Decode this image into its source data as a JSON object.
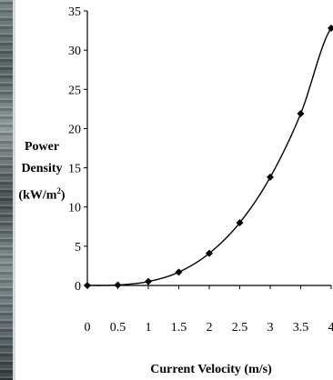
{
  "chart_data": {
    "type": "line",
    "title": "",
    "xlabel": "Current Velocity (m/s)",
    "ylabel": "Power Density (kW/m²)",
    "ylabel_parts": {
      "line1": "Power",
      "line2": "Density",
      "line3_pre": "(kW/m",
      "line3_sup": "2",
      "line3_post": ")"
    },
    "xlim": [
      0,
      4
    ],
    "ylim": [
      0,
      35
    ],
    "x_ticks": [
      "0",
      "0.5",
      "1",
      "1.5",
      "2",
      "2.5",
      "3",
      "3.5",
      "4"
    ],
    "y_ticks": [
      "0",
      "5",
      "10",
      "15",
      "20",
      "25",
      "30",
      "35"
    ],
    "x": [
      0,
      0.5,
      1,
      1.5,
      2,
      2.5,
      3,
      3.5,
      4
    ],
    "series": [
      {
        "values": [
          0,
          0.06,
          0.5,
          1.7,
          4.1,
          8.0,
          13.8,
          21.9,
          32.8
        ]
      }
    ],
    "grid": false,
    "legend": "none",
    "colors": {
      "line": "#000000",
      "marker": "#000000"
    }
  }
}
